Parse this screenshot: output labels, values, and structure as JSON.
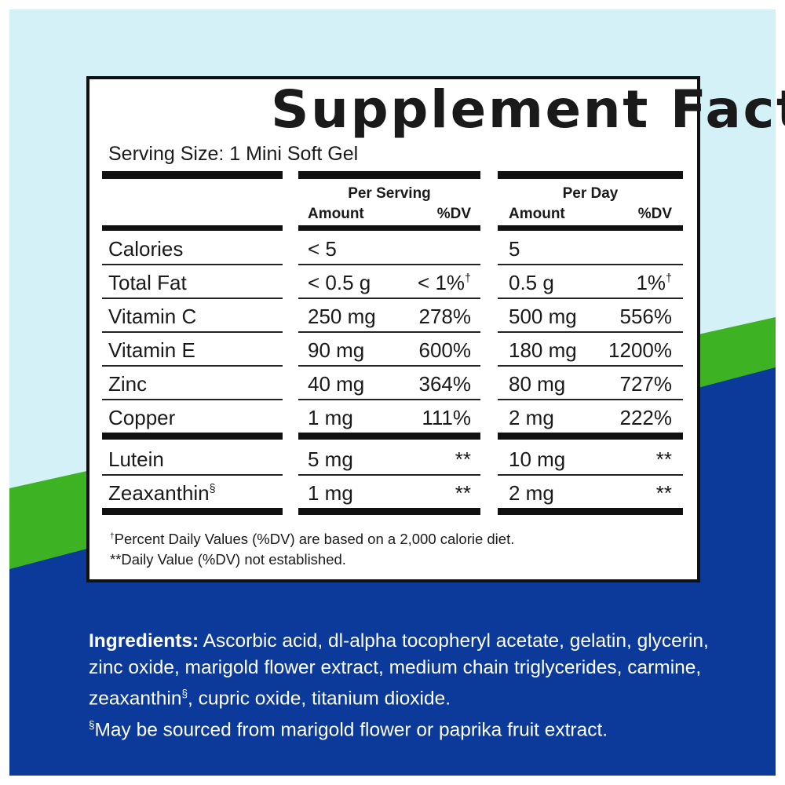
{
  "label": {
    "title": "Supplement Facts",
    "serving_size": "Serving Size: 1 Mini Soft Gel",
    "headers": {
      "per_serving": "Per Serving",
      "per_day": "Per Day",
      "serving_amount": "Amount",
      "serving_dv": "%DV",
      "day_amount": "Amount",
      "day_dv": "%DV"
    },
    "groups": [
      [
        {
          "nutrient": "Calories",
          "serving_amount": "< 5",
          "day_amount": "5"
        },
        {
          "nutrient": "Total Fat",
          "serving_amount": "< 0.5 g",
          "serving_dv": {
            "text": "< 1%",
            "sup": "†"
          },
          "day_amount": "0.5 g",
          "day_dv": {
            "text": "1%",
            "sup": "†"
          }
        },
        {
          "nutrient": "Vitamin C",
          "serving_amount": "250 mg",
          "serving_dv": {
            "text": "278%"
          },
          "day_amount": "500 mg",
          "day_dv": {
            "text": "556%"
          }
        },
        {
          "nutrient": "Vitamin E",
          "serving_amount": "90 mg",
          "serving_dv": {
            "text": "600%"
          },
          "day_amount": "180 mg",
          "day_dv": {
            "text": "1200%"
          }
        },
        {
          "nutrient": "Zinc",
          "serving_amount": "40 mg",
          "serving_dv": {
            "text": "364%"
          },
          "day_amount": "80 mg",
          "day_dv": {
            "text": "727%"
          }
        },
        {
          "nutrient": "Copper",
          "serving_amount": "1 mg",
          "serving_dv": {
            "text": "111%"
          },
          "day_amount": "2 mg",
          "day_dv": {
            "text": "222%"
          }
        }
      ],
      [
        {
          "nutrient": "Lutein",
          "serving_amount": "5 mg",
          "serving_dv": {
            "text": "**"
          },
          "day_amount": "10 mg",
          "day_dv": {
            "text": "**"
          }
        },
        {
          "nutrient": "Zeaxanthin",
          "nutrient_sup": "§",
          "serving_amount": "1 mg",
          "serving_dv": {
            "text": "**"
          },
          "day_amount": "2 mg",
          "day_dv": {
            "text": "**"
          }
        }
      ]
    ],
    "footnotes": [
      {
        "sup": "†",
        "text": "Percent Daily Values (%DV) are based on a 2,000 calorie diet."
      },
      {
        "text": "**Daily Value (%DV) not established."
      }
    ]
  },
  "ingredients": {
    "label": "Ingredients:",
    "text": " Ascorbic acid, dl-alpha tocopheryl acetate, gelatin, glycerin, zinc oxide, marigold flower extract, medium chain triglycerides, carmine, zeaxanthin",
    "sup": "§",
    "text_end": ", cupric oxide, titanium dioxide.",
    "note_sup": "§",
    "note": "May be sourced from marigold flower or paprika fruit extract."
  }
}
